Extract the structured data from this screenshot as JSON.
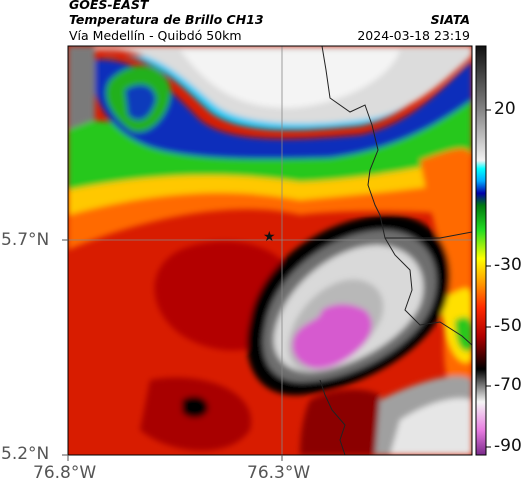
{
  "header": {
    "satellite": "GOES-EAST",
    "product": "Temperatura de Brillo CH13",
    "region": "Vía Medellín - Quibdó 50km",
    "source": "SIATA",
    "timestamp": "2024-03-18 23:19"
  },
  "axes": {
    "lat_ticks": [
      "5.7°N",
      "5.2°N"
    ],
    "lon_ticks": [
      "76.8°W",
      "76.3°W"
    ]
  },
  "colorbar": {
    "ticks": [
      "20",
      "-30",
      "-50",
      "-70",
      "-90"
    ]
  },
  "marker": {
    "symbol": "★"
  },
  "colors": {
    "warm": "#8c8c8c",
    "cold_core": "#d24fc4",
    "red": "#dd2200",
    "green": "#22c71e"
  }
}
